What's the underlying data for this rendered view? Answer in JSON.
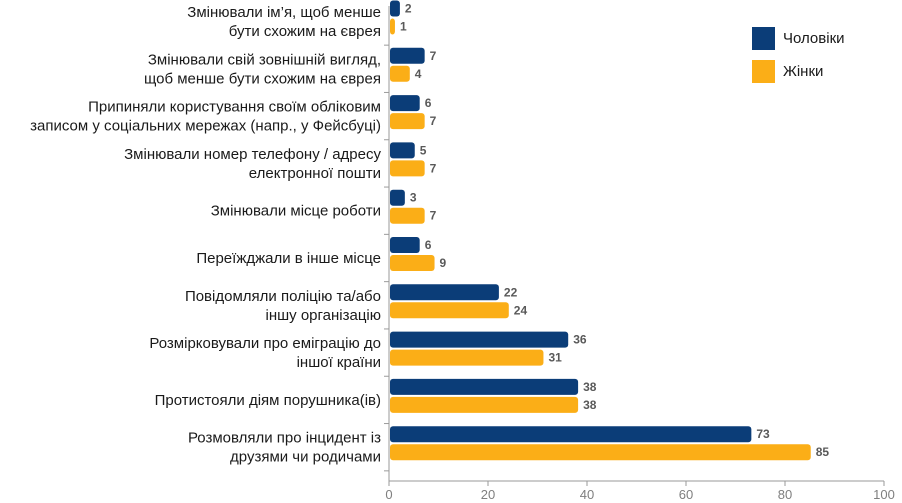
{
  "chart_data": {
    "type": "bar",
    "orientation": "horizontal",
    "title": "",
    "xlabel": "",
    "ylabel": "",
    "xlim": [
      0,
      100
    ],
    "ticks": [
      "0",
      "20",
      "40",
      "60",
      "80",
      "100"
    ],
    "tick_values": [
      0,
      20,
      40,
      60,
      80,
      100
    ],
    "legend_position": "top-right",
    "grid": false,
    "categories": [
      [
        "Змінювали ім’я, щоб менше",
        "бути схожим на єврея"
      ],
      [
        "Змінювали свій зовнішній вигляд,",
        "щоб менше бути схожим на єврея"
      ],
      [
        "Припиняли користування своїм обліковим",
        "записом у соціальних мережах (напр., у Фейсбуці)"
      ],
      [
        "Змінювали номер телефону / адресу",
        "електронної пошти"
      ],
      [
        "Змінювали місце роботи"
      ],
      [
        "Переїжджали в інше місце"
      ],
      [
        "Повідомляли поліцію та/або",
        "іншу організацію"
      ],
      [
        "Розмірковували про еміграцію до",
        "іншої країни"
      ],
      [
        "Протистояли діям порушника(ів)"
      ],
      [
        "Розмовляли про інцидент із",
        "друзями чи родичами"
      ]
    ],
    "series": [
      {
        "name": "Чоловіки",
        "color": "#0b3d78",
        "values": [
          2,
          7,
          6,
          5,
          3,
          6,
          22,
          36,
          38,
          73
        ]
      },
      {
        "name": "Жінки",
        "color": "#fbae17",
        "values": [
          1,
          4,
          7,
          7,
          7,
          9,
          24,
          31,
          38,
          85
        ]
      }
    ]
  }
}
